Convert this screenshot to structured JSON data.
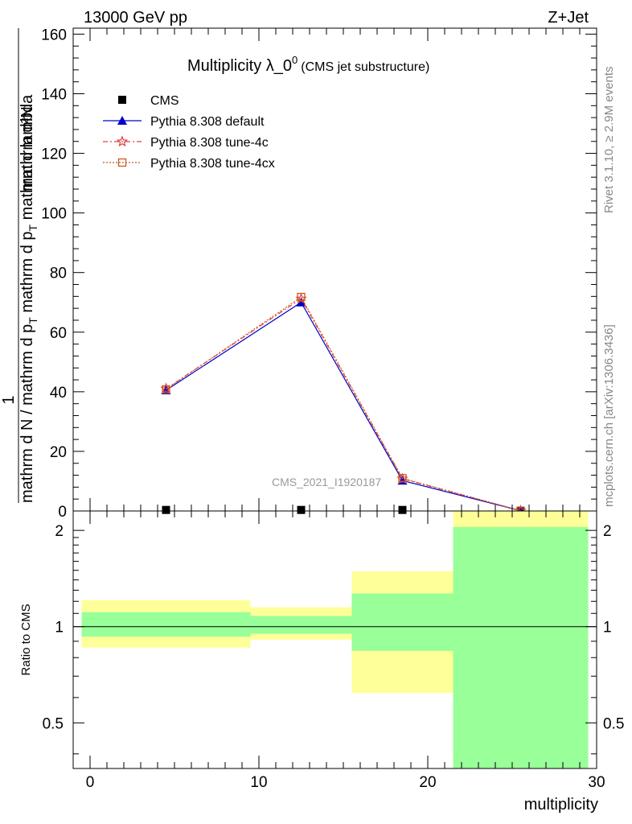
{
  "header": {
    "left": "13000 GeV pp",
    "right": "Z+Jet"
  },
  "side_labels": {
    "rivet": "Rivet 3.1.10, ≥ 2.9M events",
    "mcplots": "mcplots.cern.ch [arXiv:1306.3436]"
  },
  "watermark": "CMS_2021_I1920187",
  "colors": {
    "cms": "#000000",
    "default": "#0000cc",
    "tune4c": "#e04040",
    "tune4cx": "#c85a1e",
    "band_outer": "#ffff99",
    "band_inner": "#99ff99"
  },
  "chart_data": [
    {
      "type": "line",
      "title": "Multiplicity λ_0",
      "title_sup": "0",
      "subtitle": "(CMS jet substructure)",
      "ylabel_num": "1",
      "ylabel_num_frac": "mathrm d²N",
      "ylabel_den": "mathrm d N / mathrm d p",
      "ylabel_den_sub": "T",
      "ylabel_den_rest": " mathrm d p",
      "ylabel_den_sub2": "T",
      "ylabel_den_end": " mathrm d lambda",
      "xlim": [
        -1,
        30
      ],
      "ylim": [
        0,
        162
      ],
      "y_ticks": [
        0,
        20,
        40,
        60,
        80,
        100,
        120,
        140,
        160
      ],
      "legend_position": "top-left",
      "series": [
        {
          "name": "CMS",
          "x": [
            4.5,
            12.5,
            18.5,
            25.5
          ],
          "y": [
            0.35,
            0.35,
            0.35,
            0.1
          ]
        },
        {
          "name": "Pythia 8.308 default",
          "x": [
            4.5,
            12.5,
            18.5,
            25.5
          ],
          "y": [
            40.5,
            70.0,
            10.2,
            0.1
          ]
        },
        {
          "name": "Pythia 8.308 tune-4c",
          "x": [
            4.5,
            12.5,
            18.5,
            25.5
          ],
          "y": [
            41.0,
            71.2,
            10.8,
            0.1
          ]
        },
        {
          "name": "Pythia 8.308 tune-4cx",
          "x": [
            4.5,
            12.5,
            18.5,
            25.5
          ],
          "y": [
            40.8,
            71.8,
            11.0,
            0.1
          ]
        }
      ]
    },
    {
      "type": "area",
      "ylabel": "Ratio to CMS",
      "xlabel": "multiplicity",
      "xlim": [
        -1,
        30
      ],
      "ylim": [
        0.36,
        2.3
      ],
      "log_y": true,
      "x_ticks": [
        0,
        10,
        20,
        30
      ],
      "y_ticks": [
        0.5,
        1,
        2
      ],
      "reference_line": 1,
      "bins": [
        {
          "x_low": -0.5,
          "x_high": 9.5,
          "inner": [
            0.93,
            1.11
          ],
          "outer": [
            0.86,
            1.21
          ]
        },
        {
          "x_low": 9.5,
          "x_high": 15.5,
          "inner": [
            0.95,
            1.08
          ],
          "outer": [
            0.91,
            1.15
          ]
        },
        {
          "x_low": 15.5,
          "x_high": 21.5,
          "inner": [
            0.84,
            1.27
          ],
          "outer": [
            0.62,
            1.49
          ]
        },
        {
          "x_low": 21.5,
          "x_high": 29.5,
          "inner": [
            0.36,
            2.05
          ],
          "outer": [
            0.36,
            2.3
          ]
        }
      ]
    }
  ]
}
